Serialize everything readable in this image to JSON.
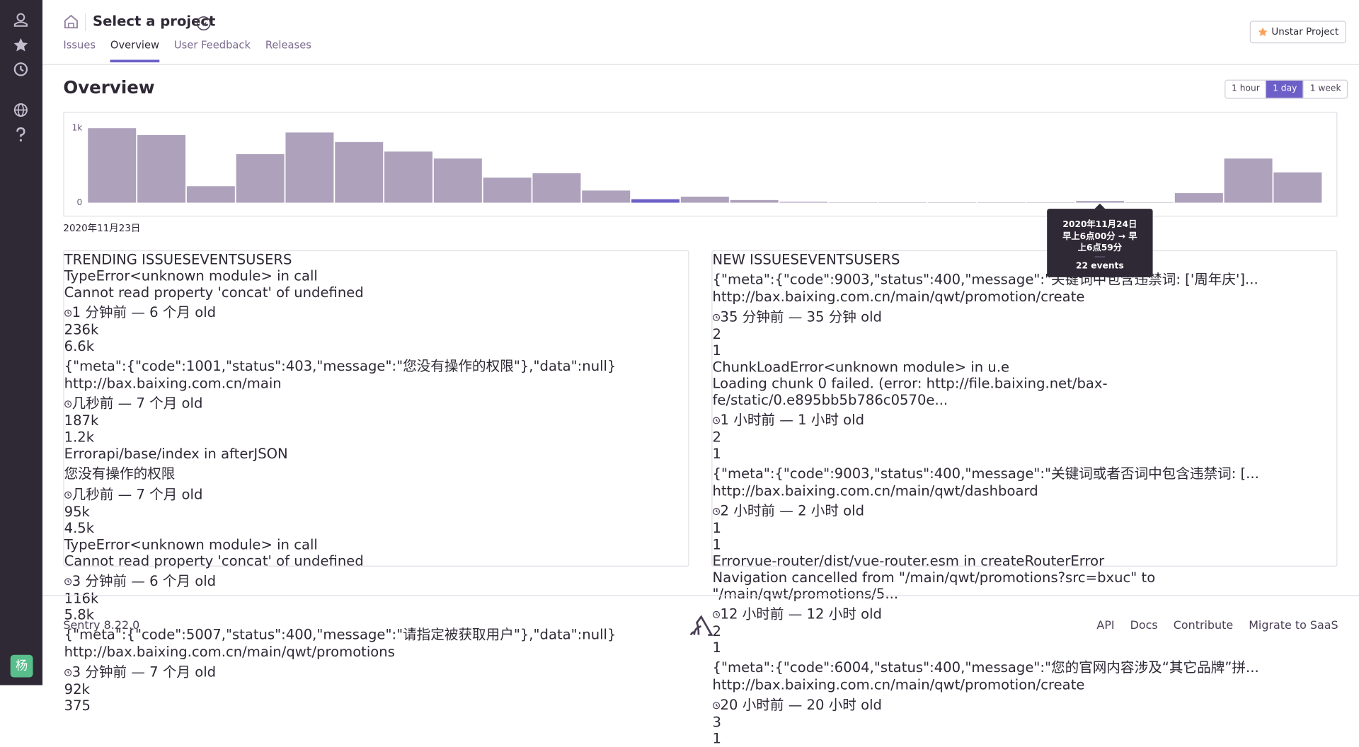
{
  "sidebar": {
    "avatar": "杨"
  },
  "header": {
    "title": "Select a project",
    "tabs": [
      "Issues",
      "Overview",
      "User Feedback",
      "Releases"
    ],
    "star_button": "Unstar Project"
  },
  "page": {
    "title": "Overview",
    "time_ranges": [
      "1 hour",
      "1 day",
      "1 week"
    ]
  },
  "chart": {
    "type": "bar",
    "color": "#ada1bb",
    "highlight_color": "#6c5fc7",
    "ylim": [
      0,
      1000
    ],
    "yticks": [
      {
        "value": 1000,
        "label": "1k"
      },
      0
    ],
    "x_label": "2020年11月23日",
    "values": [
      1000,
      907,
      221,
      651,
      942,
      814,
      686,
      593,
      337,
      395,
      163,
      47,
      81,
      35,
      12,
      5,
      5,
      5,
      5,
      5,
      22,
      5,
      128,
      593,
      407
    ],
    "tooltip": {
      "date": "2020年11月24日",
      "time": "早上6点00分 → 早上6点59分",
      "events": "22 events"
    }
  },
  "trending": {
    "columns": [
      "TRENDING ISSUES",
      "EVENTS",
      "USERS"
    ],
    "rows": [
      {
        "type": "TypeError",
        "location": "<unknown module> in call",
        "message": "Cannot read property 'concat' of undefined",
        "time": "1 分钟前 — 6 个月 old",
        "events": "236k",
        "users": "6.6k"
      },
      {
        "type": "{\"meta\":{\"code\":1001,\"status\":403,\"message\":\"您没有操作的权限\"},\"data\":null}",
        "message": "http://bax.baixing.com.cn/main",
        "time": "几秒前 — 7 个月 old",
        "events": "187k",
        "users": "1.2k"
      },
      {
        "type": "Error",
        "location": "api/base/index in afterJSON",
        "message": "您没有操作的权限",
        "time": "几秒前 — 7 个月 old",
        "events": "95k",
        "users": "4.5k"
      },
      {
        "type": "TypeError",
        "location": "<unknown module> in call",
        "message": "Cannot read property 'concat' of undefined",
        "time": "3 分钟前 — 6 个月 old",
        "events": "116k",
        "users": "5.8k"
      },
      {
        "type": "{\"meta\":{\"code\":5007,\"status\":400,\"message\":\"请指定被获取用户\"},\"data\":null}",
        "message": "http://bax.baixing.com.cn/main/qwt/promotions",
        "time": "3 分钟前 — 7 个月 old",
        "events": "92k",
        "users": "375"
      }
    ]
  },
  "new_issues": {
    "columns": [
      "NEW ISSUES",
      "EVENTS",
      "USERS"
    ],
    "rows": [
      {
        "type": "{\"meta\":{\"code\":9003,\"status\":400,\"message\":\"关键词中包含违禁词: ['周年庆']...",
        "message": "http://bax.baixing.com.cn/main/qwt/promotion/create",
        "time": "35 分钟前 — 35 分钟 old",
        "events": "2",
        "users": "1"
      },
      {
        "type": "ChunkLoadError",
        "location": "<unknown module> in u.e",
        "message": "Loading chunk 0 failed. (error: http://file.baixing.net/bax-fe/static/0.e895bb5b786c0570e...",
        "time": "1 小时前 — 1 小时 old",
        "events": "2",
        "users": "1"
      },
      {
        "type": "{\"meta\":{\"code\":9003,\"status\":400,\"message\":\"关键词或者否词中包含违禁词: [...",
        "message": "http://bax.baixing.com.cn/main/qwt/dashboard",
        "time": "2 小时前 — 2 小时 old",
        "events": "1",
        "users": "1"
      },
      {
        "type": "Error",
        "location": "vue-router/dist/vue-router.esm in createRouterError",
        "message": "Navigation cancelled from \"/main/qwt/promotions?src=bxuc\" to \"/main/qwt/promotions/5...",
        "time": "12 小时前 — 12 小时 old",
        "events": "2",
        "users": "1"
      },
      {
        "type": "{\"meta\":{\"code\":6004,\"status\":400,\"message\":\"您的官网内容涉及“其它品牌”拼...",
        "message": "http://bax.baixing.com.cn/main/qwt/promotion/create",
        "time": "20 小时前 — 20 小时 old",
        "events": "3",
        "users": "1"
      }
    ]
  },
  "footer": {
    "version": "Sentry 8.22.0",
    "links": [
      "API",
      "Docs",
      "Contribute",
      "Migrate to SaaS"
    ]
  }
}
